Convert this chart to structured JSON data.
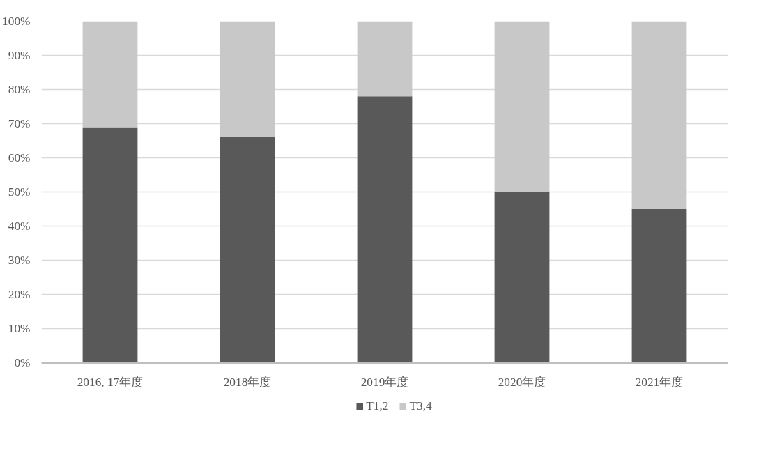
{
  "chart_data": {
    "type": "bar",
    "stacked": true,
    "categories": [
      "2016, 17年度",
      "2018年度",
      "2019年度",
      "2020年度",
      "2021年度"
    ],
    "series": [
      {
        "name": "T1,2",
        "color": "#595959",
        "values": [
          69,
          66,
          78,
          50,
          45
        ]
      },
      {
        "name": "T3,4",
        "color": "#c8c8c8",
        "values": [
          31,
          34,
          22,
          50,
          55
        ]
      }
    ],
    "ylim": [
      0,
      100
    ],
    "yticks": [
      {
        "value": 0,
        "label": "0%"
      },
      {
        "value": 10,
        "label": "10%"
      },
      {
        "value": 20,
        "label": "20%"
      },
      {
        "value": 30,
        "label": "30%"
      },
      {
        "value": 40,
        "label": "40%"
      },
      {
        "value": 50,
        "label": "50%"
      },
      {
        "value": 60,
        "label": "60%"
      },
      {
        "value": 70,
        "label": "70%"
      },
      {
        "value": 80,
        "label": "80%"
      },
      {
        "value": 90,
        "label": "90%"
      },
      {
        "value": 100,
        "label": "100%"
      }
    ],
    "grid": "y",
    "legend": "bottom"
  }
}
